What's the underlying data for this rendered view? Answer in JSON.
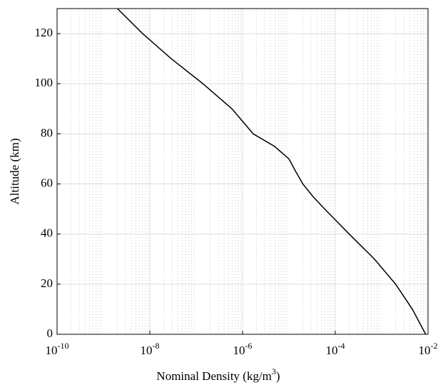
{
  "chart_data": {
    "type": "line",
    "xlabel": "Nominal Density (kg/m^3)",
    "ylabel": "Altitude (km)",
    "x": [
      0.0089,
      0.0046,
      0.002,
      0.0007,
      0.0002,
      5.9e-05,
      3.3e-05,
      2e-05,
      1.4e-05,
      1e-05,
      4.9e-06,
      1.7e-06,
      5.9e-07,
      1.4e-07,
      2.9e-08,
      7e-09,
      2e-09
    ],
    "series": [
      {
        "color": "#000000",
        "values": [
          0,
          10,
          20,
          30,
          40,
          50,
          55,
          60,
          65,
          70,
          75,
          80,
          90,
          100,
          110,
          120,
          130
        ]
      }
    ],
    "xscale": "log",
    "xlim": [
      1e-10,
      0.01
    ],
    "xticks": [
      {
        "value": 1e-10,
        "label": "10^-10"
      },
      {
        "value": 1e-08,
        "label": "10^-8"
      },
      {
        "value": 1e-06,
        "label": "10^-6"
      },
      {
        "value": 0.0001,
        "label": "10^-4"
      },
      {
        "value": 0.01,
        "label": "10^-2"
      }
    ],
    "ylim": [
      0,
      130
    ],
    "yticks": [
      0,
      20,
      40,
      60,
      80,
      100,
      120
    ],
    "grid": true,
    "minor_grid": true
  }
}
